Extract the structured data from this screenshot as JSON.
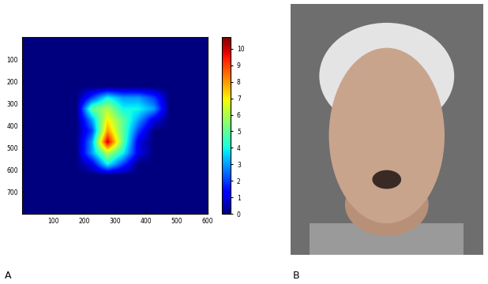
{
  "chart_data": {
    "type": "heatmap",
    "xlim": [
      0,
      600
    ],
    "ylim": [
      800,
      0
    ],
    "xticks": [
      100,
      200,
      300,
      400,
      500,
      600
    ],
    "yticks": [
      100,
      200,
      300,
      400,
      500,
      600,
      700
    ],
    "cell_x_edges": [
      0,
      50,
      100,
      150,
      200,
      250,
      300,
      350,
      400,
      450,
      500,
      550,
      600
    ],
    "cell_y_edges": [
      0,
      50,
      100,
      150,
      200,
      250,
      300,
      350,
      400,
      450,
      500,
      550,
      600,
      650,
      700,
      750,
      800
    ],
    "cells": [
      [
        0,
        0,
        0,
        0,
        0,
        0,
        0,
        0,
        0,
        0,
        0,
        0
      ],
      [
        0,
        0,
        0,
        0,
        0,
        0,
        0,
        0,
        0,
        0,
        0,
        0
      ],
      [
        0,
        0,
        0,
        0,
        0,
        0,
        0,
        0,
        0,
        0,
        0,
        0
      ],
      [
        0,
        0,
        0,
        0,
        0,
        0,
        0,
        0,
        0,
        0,
        0,
        0
      ],
      [
        0,
        0,
        0,
        0,
        0,
        0,
        0,
        0,
        0,
        0,
        0,
        0
      ],
      [
        0,
        0,
        0,
        0,
        2,
        4,
        3,
        3,
        2,
        0,
        0,
        0
      ],
      [
        0,
        0,
        0,
        0,
        5,
        6,
        4,
        4,
        3,
        0,
        0,
        0
      ],
      [
        0,
        0,
        0,
        0,
        3,
        7,
        5,
        3,
        1,
        0,
        0,
        0
      ],
      [
        0,
        0,
        0,
        0,
        2,
        8,
        5,
        2,
        0,
        0,
        0,
        0
      ],
      [
        0,
        0,
        0,
        0,
        3,
        10,
        5,
        1,
        0,
        0,
        0,
        0
      ],
      [
        0,
        0,
        0,
        0,
        3,
        6,
        4,
        1,
        0,
        0,
        0,
        0
      ],
      [
        0,
        0,
        0,
        0,
        1,
        4,
        2,
        0,
        0,
        0,
        0,
        0
      ],
      [
        0,
        0,
        0,
        0,
        0,
        0,
        0,
        0,
        0,
        0,
        0,
        0
      ],
      [
        0,
        0,
        0,
        0,
        0,
        0,
        0,
        0,
        0,
        0,
        0,
        0
      ],
      [
        0,
        0,
        0,
        0,
        0,
        0,
        0,
        0,
        0,
        0,
        0,
        0
      ],
      [
        0,
        0,
        0,
        0,
        0,
        0,
        0,
        0,
        0,
        0,
        0,
        0
      ]
    ],
    "colorbar_lim": [
      0,
      10.7
    ],
    "colorbar_ticks": [
      0,
      1,
      2,
      3,
      4,
      5,
      6,
      7,
      8,
      9,
      10
    ]
  },
  "panel_labels": [
    "A",
    "B"
  ]
}
